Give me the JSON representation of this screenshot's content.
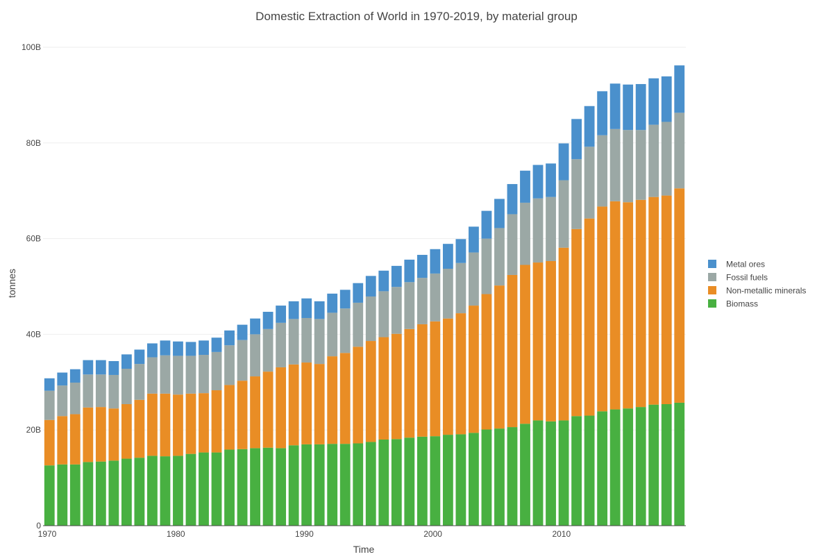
{
  "chart_data": {
    "type": "bar",
    "stacked": true,
    "title": "Domestic Extraction of World in 1970-2019, by material group",
    "xlabel": "Time",
    "ylabel": "tonnes",
    "ylim": [
      0,
      100000000000
    ],
    "yticks": [
      0,
      20000000000,
      40000000000,
      60000000000,
      80000000000,
      100000000000
    ],
    "ytick_labels": [
      "0",
      "20B",
      "40B",
      "60B",
      "80B",
      "100B"
    ],
    "xticks": [
      1970,
      1980,
      1990,
      2000,
      2010
    ],
    "xtick_labels": [
      "1970",
      "1980",
      "1990",
      "2000",
      "2010"
    ],
    "grid": true,
    "legend_position": "right",
    "x": [
      1970,
      1971,
      1972,
      1973,
      1974,
      1975,
      1976,
      1977,
      1978,
      1979,
      1980,
      1981,
      1982,
      1983,
      1984,
      1985,
      1986,
      1987,
      1988,
      1989,
      1990,
      1991,
      1992,
      1993,
      1994,
      1995,
      1996,
      1997,
      1998,
      1999,
      2000,
      2001,
      2002,
      2003,
      2004,
      2005,
      2006,
      2007,
      2008,
      2009,
      2010,
      2011,
      2012,
      2013,
      2014,
      2015,
      2016,
      2017,
      2018,
      2019
    ],
    "series": [
      {
        "name": "Biomass",
        "color": "#48b041",
        "values": [
          12600000000.0,
          12800000000.0,
          12800000000.0,
          13300000000.0,
          13400000000.0,
          13600000000.0,
          14000000000.0,
          14200000000.0,
          14600000000.0,
          14500000000.0,
          14600000000.0,
          15000000000.0,
          15300000000.0,
          15300000000.0,
          15900000000.0,
          16000000000.0,
          16200000000.0,
          16300000000.0,
          16200000000.0,
          16800000000.0,
          17000000000.0,
          17000000000.0,
          17100000000.0,
          17100000000.0,
          17200000000.0,
          17500000000.0,
          18000000000.0,
          18100000000.0,
          18400000000.0,
          18600000000.0,
          18700000000.0,
          19000000000.0,
          19100000000.0,
          19400000000.0,
          20100000000.0,
          20300000000.0,
          20600000000.0,
          21300000000.0,
          22000000000.0,
          21800000000.0,
          22000000000.0,
          22900000000.0,
          23000000000.0,
          23900000000.0,
          24300000000.0,
          24500000000.0,
          24800000000.0,
          25300000000.0,
          25400000000.0,
          25700000000.0
        ]
      },
      {
        "name": "Non-metallic minerals",
        "color": "#e98d25",
        "values": [
          9500000000.0,
          10100000000.0,
          10500000000.0,
          11400000000.0,
          11400000000.0,
          10900000000.0,
          11400000000.0,
          12100000000.0,
          13000000000.0,
          13100000000.0,
          12800000000.0,
          12600000000.0,
          12400000000.0,
          13000000000.0,
          13500000000.0,
          14300000000.0,
          15000000000.0,
          15900000000.0,
          16900000000.0,
          16900000000.0,
          17100000000.0,
          16800000000.0,
          18300000000.0,
          19000000000.0,
          20200000000.0,
          21100000000.0,
          21400000000.0,
          22000000000.0,
          22700000000.0,
          23500000000.0,
          24000000000.0,
          24300000000.0,
          25300000000.0,
          26600000000.0,
          28300000000.0,
          29900000000.0,
          31800000000.0,
          33200000000.0,
          33000000000.0,
          33500000000.0,
          36100000000.0,
          39100000000.0,
          41200000000.0,
          42800000000.0,
          43500000000.0,
          43100000000.0,
          43300000000.0,
          43400000000.0,
          43600000000.0,
          44800000000.0
        ]
      },
      {
        "name": "Fossil fuels",
        "color": "#9ba8a5",
        "values": [
          6100000000.0,
          6400000000.0,
          6600000000.0,
          6900000000.0,
          6800000000.0,
          7000000000.0,
          7400000000.0,
          7500000000.0,
          7600000000.0,
          8000000000.0,
          8100000000.0,
          7900000000.0,
          8000000000.0,
          8000000000.0,
          8300000000.0,
          8500000000.0,
          8800000000.0,
          8900000000.0,
          9300000000.0,
          9500000000.0,
          9300000000.0,
          9400000000.0,
          9100000000.0,
          9300000000.0,
          9200000000.0,
          9300000000.0,
          9600000000.0,
          9800000000.0,
          9800000000.0,
          9700000000.0,
          10000000000.0,
          10400000000.0,
          10500000000.0,
          11100000000.0,
          11600000000.0,
          12000000000.0,
          12700000000.0,
          13000000000.0,
          13400000000.0,
          13400000000.0,
          14100000000.0,
          14600000000.0,
          15000000000.0,
          14900000000.0,
          15100000000.0,
          15100000000.0,
          14600000000.0,
          15100000000.0,
          15400000000.0,
          15800000000.0
        ]
      },
      {
        "name": "Metal ores",
        "color": "#4a90cc",
        "values": [
          2600000000.0,
          2700000000.0,
          2800000000.0,
          3000000000.0,
          3000000000.0,
          2900000000.0,
          3000000000.0,
          3000000000.0,
          2900000000.0,
          3100000000.0,
          3000000000.0,
          2900000000.0,
          3000000000.0,
          3000000000.0,
          3100000000.0,
          3200000000.0,
          3300000000.0,
          3600000000.0,
          3600000000.0,
          3700000000.0,
          4100000000.0,
          3700000000.0,
          4000000000.0,
          3900000000.0,
          4100000000.0,
          4300000000.0,
          4300000000.0,
          4400000000.0,
          4700000000.0,
          4800000000.0,
          5100000000.0,
          5200000000.0,
          5000000000.0,
          5400000000.0,
          5800000000.0,
          6100000000.0,
          6300000000.0,
          6700000000.0,
          7000000000.0,
          7000000000.0,
          7700000000.0,
          8400000000.0,
          8500000000.0,
          9200000000.0,
          9500000000.0,
          9500000000.0,
          9600000000.0,
          9700000000.0,
          9500000000.0,
          9900000000.0
        ]
      }
    ],
    "legend_order": [
      "Metal ores",
      "Fossil fuels",
      "Non-metallic minerals",
      "Biomass"
    ]
  }
}
